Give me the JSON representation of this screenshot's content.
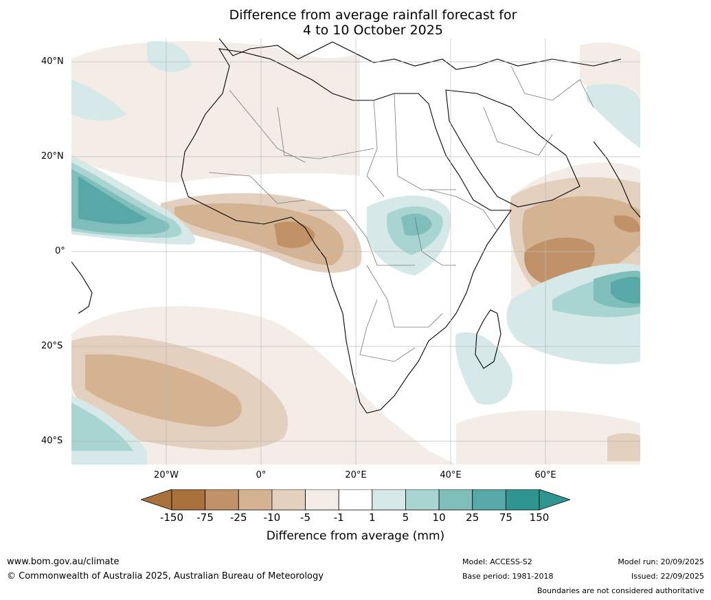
{
  "title_line1": "Difference from average rainfall forecast for",
  "title_line2": "4 to 10 October 2025",
  "map": {
    "lat_labels": [
      "40°N",
      "20°N",
      "0°",
      "20°S",
      "40°S"
    ],
    "lon_labels": [
      "20°W",
      "0°",
      "20°E",
      "40°E",
      "60°E"
    ]
  },
  "colorbar": {
    "ticks": [
      "-150",
      "-75",
      "-25",
      "-10",
      "-5",
      "-1",
      "1",
      "5",
      "10",
      "25",
      "75",
      "150"
    ],
    "colors": [
      "#a8703a",
      "#c19268",
      "#d4b393",
      "#e4d0bf",
      "#f4ece7",
      "#ffffff",
      "#d6e8e7",
      "#a8d4d2",
      "#80bebb",
      "#56a9a6",
      "#2e9591"
    ],
    "end_low_color": "#a8703a",
    "end_high_color": "#2e9591",
    "label": "Difference from average (mm)"
  },
  "footer": {
    "website": "www.bom.gov.au/climate",
    "copyright": "© Commonwealth of Australia 2025, Australian Bureau of Meteorology",
    "model": "Model: ACCESS-S2",
    "base_period": "Base period: 1981-2018",
    "model_run": "Model run: 20/09/2025",
    "issued": "Issued: 22/09/2025",
    "boundaries_note": "Boundaries are not considered authoritative"
  }
}
